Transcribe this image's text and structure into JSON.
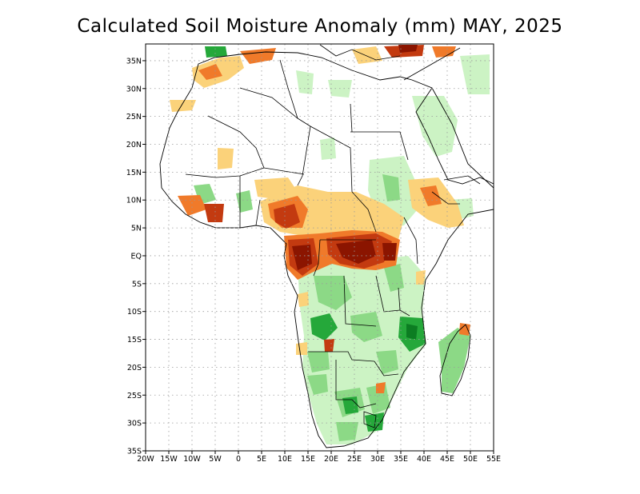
{
  "title": "Calculated Soil Moisture Anomaly (mm) MAY, 2025",
  "map": {
    "region": "Africa",
    "projection": "equirectangular",
    "lon_range": [
      -20,
      55
    ],
    "lat_range": [
      -35,
      38
    ],
    "graticule": "dotted",
    "colors": {
      "dry_extreme": "#8b1500",
      "dry_strong": "#c33a10",
      "dry_moderate": "#f07a2a",
      "dry_light": "#fbd27a",
      "wet_light": "#ccf3c4",
      "wet_moderate": "#8cd986",
      "wet_strong": "#25a83a",
      "wet_extreme": "#0c7d22"
    }
  },
  "axes": {
    "lat_ticks": [
      {
        "value": 35,
        "label": "35N"
      },
      {
        "value": 30,
        "label": "30N"
      },
      {
        "value": 25,
        "label": "25N"
      },
      {
        "value": 20,
        "label": "20N"
      },
      {
        "value": 15,
        "label": "15N"
      },
      {
        "value": 10,
        "label": "10N"
      },
      {
        "value": 5,
        "label": "5N"
      },
      {
        "value": 0,
        "label": "EQ"
      },
      {
        "value": -5,
        "label": "5S"
      },
      {
        "value": -10,
        "label": "10S"
      },
      {
        "value": -15,
        "label": "15S"
      },
      {
        "value": -20,
        "label": "20S"
      },
      {
        "value": -25,
        "label": "25S"
      },
      {
        "value": -30,
        "label": "30S"
      },
      {
        "value": -35,
        "label": "35S"
      }
    ],
    "lon_ticks": [
      {
        "value": -20,
        "label": "20W"
      },
      {
        "value": -15,
        "label": "15W"
      },
      {
        "value": -10,
        "label": "10W"
      },
      {
        "value": -5,
        "label": "5W"
      },
      {
        "value": 0,
        "label": "0"
      },
      {
        "value": 5,
        "label": "5E"
      },
      {
        "value": 10,
        "label": "10E"
      },
      {
        "value": 15,
        "label": "15E"
      },
      {
        "value": 20,
        "label": "20E"
      },
      {
        "value": 25,
        "label": "25E"
      },
      {
        "value": 30,
        "label": "30E"
      },
      {
        "value": 35,
        "label": "35E"
      },
      {
        "value": 40,
        "label": "40E"
      },
      {
        "value": 45,
        "label": "45E"
      },
      {
        "value": 50,
        "label": "50E"
      },
      {
        "value": 55,
        "label": "55E"
      }
    ]
  }
}
